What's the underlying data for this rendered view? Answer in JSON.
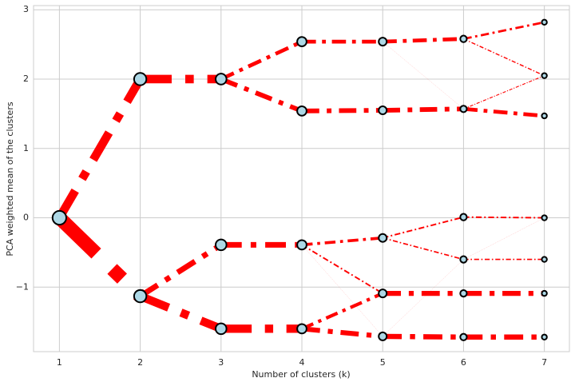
{
  "chart_data": {
    "type": "clustergram",
    "xlabel": "Number of clusters (k)",
    "ylabel": "PCA weighted mean of the clusters",
    "xlim": [
      0.68,
      7.31
    ],
    "ylim": [
      -1.93,
      3.06
    ],
    "xticks": [
      1,
      2,
      3,
      4,
      5,
      6,
      7
    ],
    "yticks": [
      {
        "value": -1,
        "label": "−1"
      },
      0,
      1,
      2,
      3
    ],
    "grid": true,
    "color": "#ff0000",
    "node_color": "#add8e6",
    "nodes": [
      {
        "k": 1,
        "y": 0
      },
      {
        "k": 2,
        "y": 2.0
      },
      {
        "k": 2,
        "y": -1.13
      },
      {
        "k": 3,
        "y": 2.0
      },
      {
        "k": 3,
        "y": -0.39
      },
      {
        "k": 3,
        "y": -1.6
      },
      {
        "k": 4,
        "y": 2.54
      },
      {
        "k": 4,
        "y": 1.54
      },
      {
        "k": 4,
        "y": -0.39
      },
      {
        "k": 4,
        "y": -1.6
      },
      {
        "k": 5,
        "y": 2.54
      },
      {
        "k": 5,
        "y": 1.55
      },
      {
        "k": 5,
        "y": -0.29
      },
      {
        "k": 5,
        "y": -1.09
      },
      {
        "k": 5,
        "y": -1.71
      },
      {
        "k": 6,
        "y": 2.58
      },
      {
        "k": 6,
        "y": 1.57
      },
      {
        "k": 6,
        "y": 0.01
      },
      {
        "k": 6,
        "y": -0.6
      },
      {
        "k": 6,
        "y": -1.09
      },
      {
        "k": 6,
        "y": -1.72
      },
      {
        "k": 7,
        "y": 2.82
      },
      {
        "k": 7,
        "y": 2.05
      },
      {
        "k": 7,
        "y": 1.47
      },
      {
        "k": 7,
        "y": 0.0
      },
      {
        "k": 7,
        "y": -0.6
      },
      {
        "k": 7,
        "y": -1.09
      },
      {
        "k": 7,
        "y": -1.72
      }
    ],
    "edges": [
      {
        "from": 0,
        "to": 1,
        "weight": 0.38
      },
      {
        "from": 0,
        "to": 2,
        "weight": 0.62
      },
      {
        "from": 1,
        "to": 3,
        "weight": 0.38
      },
      {
        "from": 2,
        "to": 4,
        "weight": 0.25
      },
      {
        "from": 2,
        "to": 5,
        "weight": 0.37
      },
      {
        "from": 3,
        "to": 6,
        "weight": 0.17
      },
      {
        "from": 3,
        "to": 7,
        "weight": 0.21
      },
      {
        "from": 4,
        "to": 8,
        "weight": 0.25
      },
      {
        "from": 5,
        "to": 9,
        "weight": 0.37
      },
      {
        "from": 6,
        "to": 10,
        "weight": 0.17
      },
      {
        "from": 7,
        "to": 11,
        "weight": 0.21
      },
      {
        "from": 8,
        "to": 12,
        "weight": 0.13
      },
      {
        "from": 8,
        "to": 13,
        "weight": 0.07
      },
      {
        "from": 8,
        "to": 14,
        "weight": 0.005
      },
      {
        "from": 9,
        "to": 13,
        "weight": 0.15
      },
      {
        "from": 9,
        "to": 14,
        "weight": 0.22
      },
      {
        "from": 10,
        "to": 15,
        "weight": 0.17
      },
      {
        "from": 10,
        "to": 16,
        "weight": 0.005
      },
      {
        "from": 11,
        "to": 16,
        "weight": 0.21
      },
      {
        "from": 12,
        "to": 17,
        "weight": 0.07
      },
      {
        "from": 12,
        "to": 18,
        "weight": 0.06
      },
      {
        "from": 13,
        "to": 19,
        "weight": 0.22
      },
      {
        "from": 14,
        "to": 20,
        "weight": 0.23
      },
      {
        "from": 14,
        "to": 18,
        "weight": 0.005
      },
      {
        "from": 15,
        "to": 21,
        "weight": 0.1
      },
      {
        "from": 15,
        "to": 22,
        "weight": 0.05
      },
      {
        "from": 16,
        "to": 22,
        "weight": 0.04
      },
      {
        "from": 16,
        "to": 23,
        "weight": 0.17
      },
      {
        "from": 17,
        "to": 24,
        "weight": 0.07
      },
      {
        "from": 18,
        "to": 25,
        "weight": 0.06
      },
      {
        "from": 18,
        "to": 24,
        "weight": 0.005
      },
      {
        "from": 19,
        "to": 26,
        "weight": 0.22
      },
      {
        "from": 20,
        "to": 27,
        "weight": 0.23
      }
    ]
  }
}
